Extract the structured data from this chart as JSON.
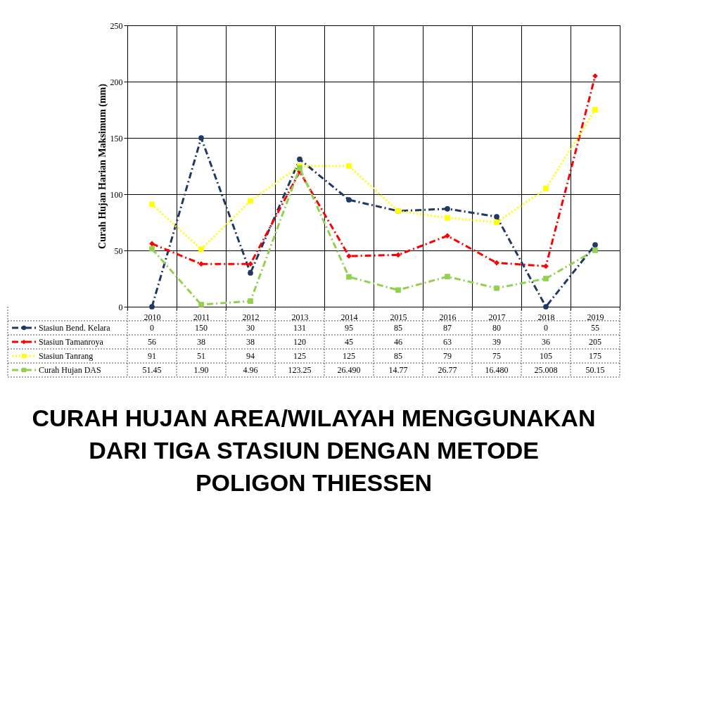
{
  "chart_data": {
    "type": "line",
    "title": "CURAH HUJAN AREA/WILAYAH MENGGUNAKAN DARI TIGA STASIUN DENGAN METODE POLIGON THIESSEN",
    "ylabel": "Curah Hujan Harian Maksimum  (mm)",
    "categories": [
      "2010",
      "2011",
      "2012",
      "2013",
      "2014",
      "2015",
      "2016",
      "2017",
      "2018",
      "2019"
    ],
    "ylim": [
      0,
      250
    ],
    "yticks": [
      0,
      50,
      100,
      150,
      200,
      250
    ],
    "grid": true,
    "legend": "bottom left",
    "series": [
      {
        "name": "Stasiun Bend. Kelara",
        "color": "#1f3864",
        "marker": "circle",
        "line_style": "dashed",
        "values": [
          0,
          150,
          30,
          131,
          95,
          85,
          87,
          80,
          0,
          55
        ],
        "value_labels": [
          "0",
          "150",
          "30",
          "131",
          "95",
          "85",
          "87",
          "80",
          "0",
          "55"
        ]
      },
      {
        "name": "Stasiun Tamanroya",
        "color": "#ff0000",
        "marker": "diamond",
        "line_style": "dashed",
        "values": [
          56,
          38,
          38,
          120,
          45,
          46,
          63,
          39,
          36,
          205
        ],
        "value_labels": [
          "56",
          "38",
          "38",
          "120",
          "45",
          "46",
          "63",
          "39",
          "36",
          "205"
        ]
      },
      {
        "name": "Stasiun Tanrang",
        "color": "#ffff00",
        "marker": "square",
        "line_style": "dotted",
        "values": [
          91,
          51,
          94,
          125,
          125,
          85,
          79,
          75,
          105,
          175
        ],
        "value_labels": [
          "91",
          "51",
          "94",
          "125",
          "125",
          "85",
          "79",
          "75",
          "105",
          "175"
        ]
      },
      {
        "name": "Curah Hujan DAS",
        "color": "#92d050",
        "marker": "square",
        "line_style": "dashed",
        "values": [
          51.45,
          1.9,
          4.96,
          123.25,
          26.49,
          14.77,
          26.77,
          16.48,
          25.008,
          50.15
        ],
        "value_labels": [
          "51.45",
          "1.90",
          "4.96",
          "123.25",
          "26.490",
          "14.77",
          "26.77",
          "16.480",
          "25.008",
          "50.15"
        ]
      }
    ]
  }
}
